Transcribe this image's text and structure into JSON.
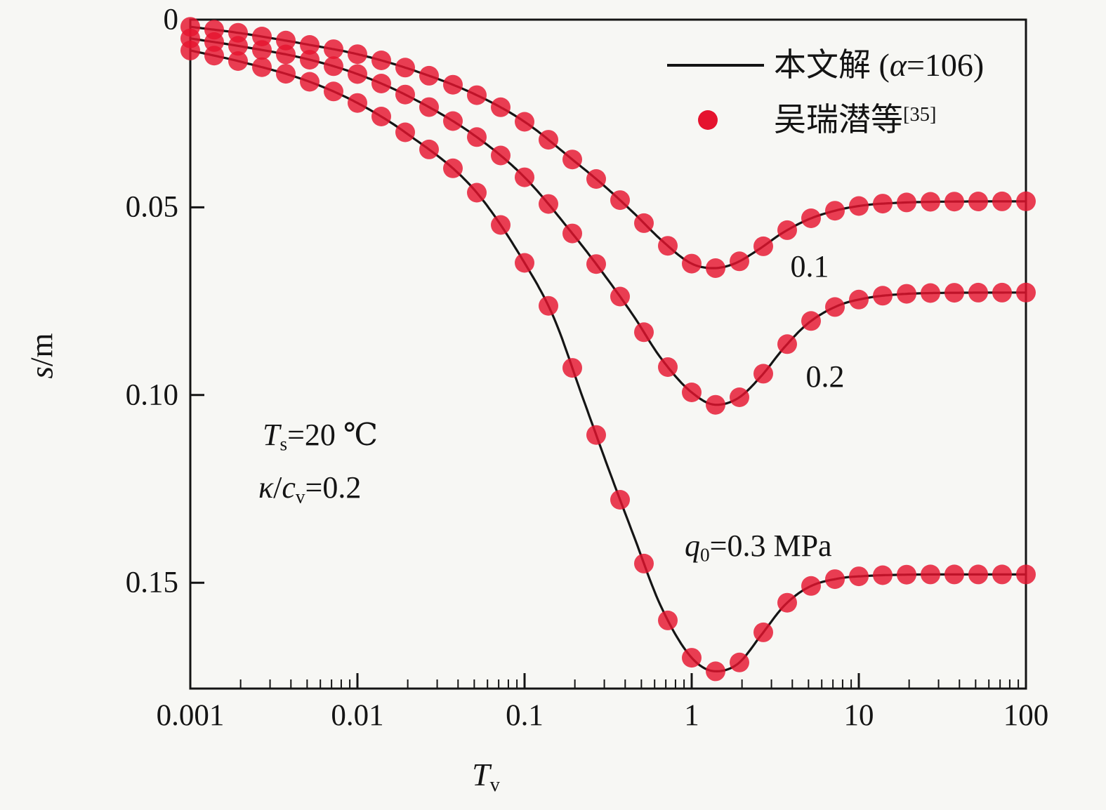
{
  "chart_data": {
    "type": "line",
    "title": "",
    "x_axis": {
      "title_main": "T",
      "title_sub": "v",
      "scale": "log",
      "range": [
        0.001,
        100
      ],
      "tick_labels": [
        "0.001",
        "0.01",
        "0.1",
        "1",
        "10",
        "100"
      ],
      "tick_values": [
        0.001,
        0.01,
        0.1,
        1,
        10,
        100
      ]
    },
    "y_axis": {
      "title_italic": "s",
      "title_rest": "/m",
      "range": [
        0,
        0.1782
      ],
      "direction": "down",
      "tick_labels": [
        "0",
        "0.05",
        "0.10",
        "0.15"
      ],
      "tick_values": [
        0,
        0.05,
        0.1,
        0.15
      ]
    },
    "legend": {
      "position": "top-right-inside",
      "line_entry": {
        "pre": "本文解 (",
        "alpha": "α",
        "post": "=106)"
      },
      "dot_entry": {
        "text": "吴瑞潜等",
        "sup": "[35]"
      }
    },
    "annotations": {
      "ts": {
        "italic": "T",
        "sub": "s",
        "rest": "=20 ℃"
      },
      "kcv": {
        "italic_k": "κ",
        "slash": "/",
        "italic_c": "c",
        "sub": "v",
        "rest": "=0.2"
      },
      "q": {
        "italic": "q",
        "sub": "0",
        "rest": "=0.3 MPa"
      },
      "curve1": "0.1",
      "curve2": "0.2"
    },
    "style": {
      "background": "#f7f7f4",
      "axis_color": "#141414",
      "line_color": "#151515",
      "marker_color": "#e5132e",
      "marker_opacity": 0.82,
      "marker_radius": 14
    },
    "markers_per_decade": 7,
    "series": [
      {
        "name": "q0=0.1 MPa",
        "points": [
          [
            0.001,
            0.0019
          ],
          [
            0.002,
            0.0036
          ],
          [
            0.005,
            0.0066
          ],
          [
            0.01,
            0.0092
          ],
          [
            0.02,
            0.013
          ],
          [
            0.05,
            0.0198
          ],
          [
            0.1,
            0.0272
          ],
          [
            0.2,
            0.0378
          ],
          [
            0.3,
            0.0443
          ],
          [
            0.45,
            0.0515
          ],
          [
            0.65,
            0.0585
          ],
          [
            1.0,
            0.065
          ],
          [
            1.35,
            0.0662
          ],
          [
            1.8,
            0.065
          ],
          [
            2.5,
            0.0613
          ],
          [
            3.5,
            0.0568
          ],
          [
            5,
            0.0532
          ],
          [
            7.5,
            0.0507
          ],
          [
            11,
            0.0494
          ],
          [
            17,
            0.0488
          ],
          [
            30,
            0.0485
          ],
          [
            100,
            0.0484
          ]
        ]
      },
      {
        "name": "q0=0.2 MPa",
        "points": [
          [
            0.001,
            0.005
          ],
          [
            0.002,
            0.0071
          ],
          [
            0.005,
            0.0105
          ],
          [
            0.01,
            0.0145
          ],
          [
            0.02,
            0.0203
          ],
          [
            0.05,
            0.0308
          ],
          [
            0.1,
            0.042
          ],
          [
            0.2,
            0.0578
          ],
          [
            0.3,
            0.068
          ],
          [
            0.45,
            0.079
          ],
          [
            0.65,
            0.09
          ],
          [
            1.0,
            0.0993
          ],
          [
            1.4,
            0.1026
          ],
          [
            1.9,
            0.1008
          ],
          [
            2.6,
            0.095
          ],
          [
            3.6,
            0.0872
          ],
          [
            5,
            0.0808
          ],
          [
            7.5,
            0.0762
          ],
          [
            11,
            0.0742
          ],
          [
            17,
            0.0732
          ],
          [
            30,
            0.0728
          ],
          [
            100,
            0.0727
          ]
        ]
      },
      {
        "name": "q0=0.3 MPa",
        "points": [
          [
            0.001,
            0.0082
          ],
          [
            0.002,
            0.0112
          ],
          [
            0.005,
            0.0163
          ],
          [
            0.01,
            0.0222
          ],
          [
            0.02,
            0.0305
          ],
          [
            0.05,
            0.0453
          ],
          [
            0.1,
            0.0648
          ],
          [
            0.15,
            0.0795
          ],
          [
            0.22,
            0.1
          ],
          [
            0.32,
            0.12
          ],
          [
            0.45,
            0.1375
          ],
          [
            0.65,
            0.156
          ],
          [
            1.0,
            0.17
          ],
          [
            1.4,
            0.1736
          ],
          [
            1.9,
            0.1715
          ],
          [
            2.6,
            0.164
          ],
          [
            3.6,
            0.156
          ],
          [
            5,
            0.1512
          ],
          [
            7.5,
            0.1489
          ],
          [
            11,
            0.1482
          ],
          [
            17,
            0.1479
          ],
          [
            30,
            0.1478
          ],
          [
            100,
            0.1478
          ]
        ]
      }
    ]
  }
}
